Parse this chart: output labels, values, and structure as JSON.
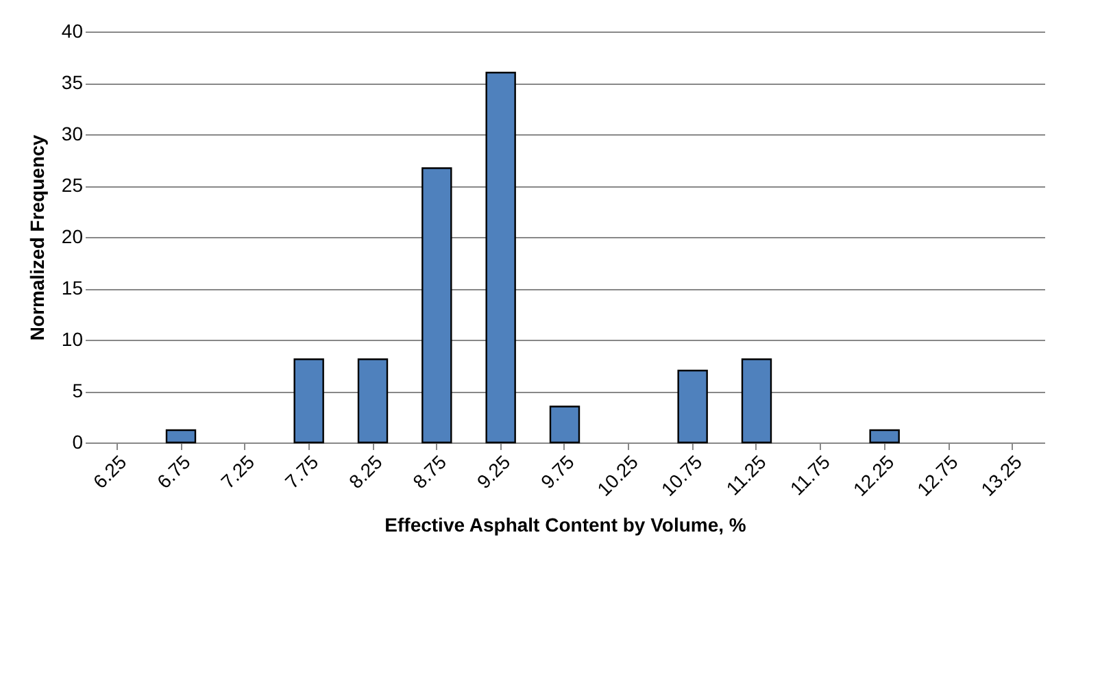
{
  "chart_data": {
    "type": "bar",
    "xlabel": "Effective Asphalt Content by Volume, %",
    "ylabel": "Normalized Frequency",
    "categories": [
      "6.25",
      "6.75",
      "7.25",
      "7.75",
      "8.25",
      "8.75",
      "9.25",
      "9.75",
      "10.25",
      "10.75",
      "11.25",
      "11.75",
      "12.25",
      "12.75",
      "13.25"
    ],
    "values": [
      0,
      1.2,
      0,
      8.1,
      8.1,
      26.7,
      36,
      3.5,
      0,
      7,
      8.1,
      0,
      1.2,
      0,
      0
    ],
    "color": "#4f81bd",
    "ylim": [
      0,
      40
    ],
    "yticks": [
      0,
      5,
      10,
      15,
      20,
      25,
      30,
      35,
      40
    ],
    "grid": "y"
  }
}
